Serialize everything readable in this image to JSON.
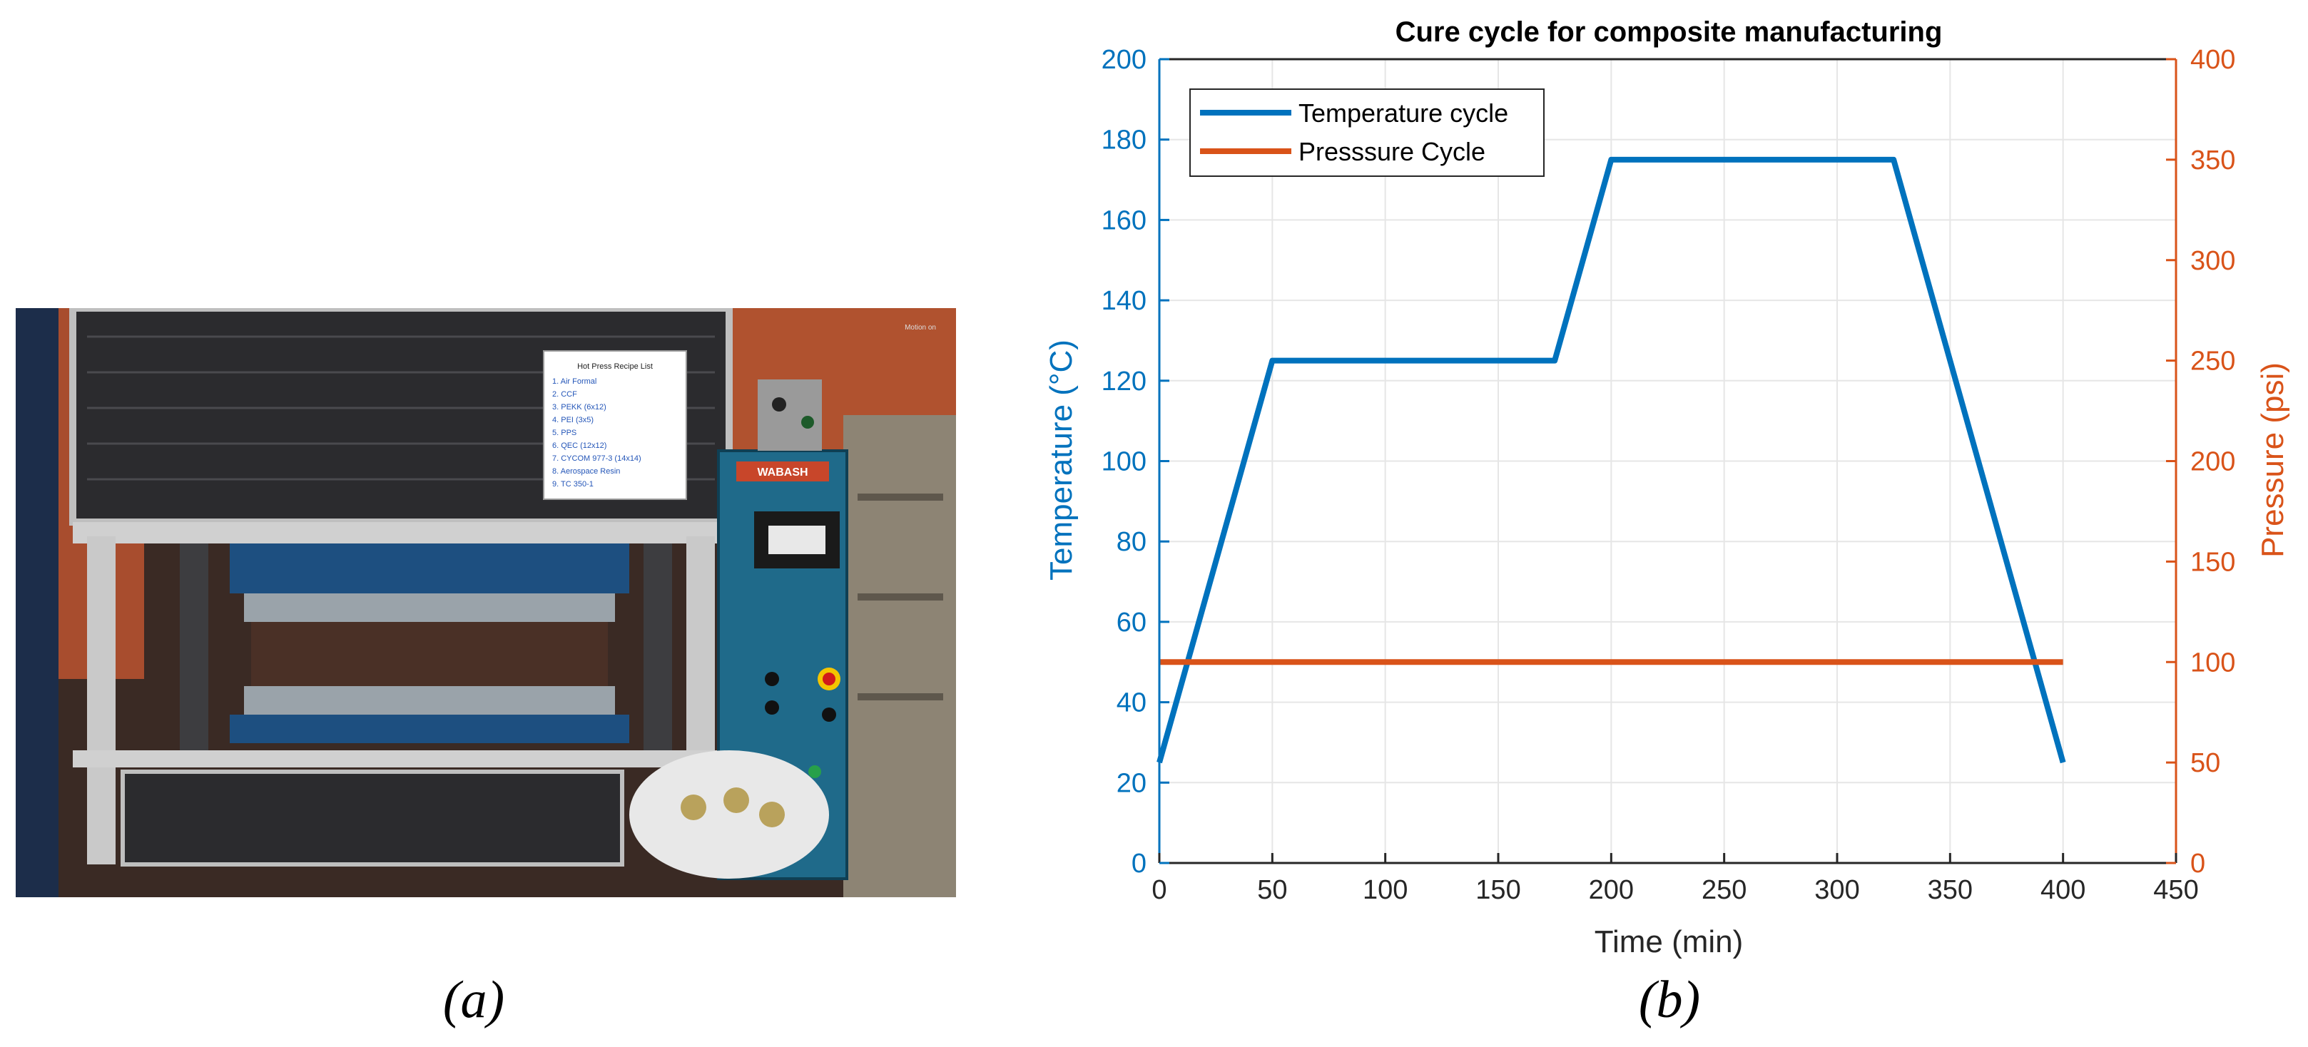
{
  "panels": {
    "a_label": "(a)",
    "b_label": "(b)"
  },
  "photo": {
    "recipe_card": {
      "title": "Hot Press Recipe List",
      "lines": [
        "1. Air Formal",
        "2. CCF",
        "3. PEKK (6x12)",
        "4. PEI (3x5)",
        "5. PPS",
        "6. QEC (12x12)",
        "7. CYCOM 977-3 (14x14)",
        "8. Aerospace Resin",
        "9. TC 350-1"
      ]
    },
    "press_brand": "WABASH",
    "overlay_text": "Motion on"
  },
  "colors": {
    "temperature": "#0072BD",
    "pressure": "#D95319",
    "grid": "#e6e6e6",
    "axis": "#262626"
  },
  "chart_data": {
    "type": "line",
    "title": "Cure cycle for composite manufacturing",
    "xlabel": "Time (min)",
    "ylabel_left": "Temperature  (°C)",
    "ylabel_right": "Pressure (psi)",
    "xlim": [
      0,
      450
    ],
    "ylim_left": [
      0,
      200
    ],
    "ylim_right": [
      0,
      400
    ],
    "xticks": [
      0,
      50,
      100,
      150,
      200,
      250,
      300,
      350,
      400,
      450
    ],
    "yticks_left": [
      0,
      20,
      40,
      60,
      80,
      100,
      120,
      140,
      160,
      180,
      200
    ],
    "yticks_right": [
      0,
      50,
      100,
      150,
      200,
      250,
      300,
      350,
      400
    ],
    "grid": true,
    "legend_position": "top-left",
    "series": [
      {
        "name": "Temperature cycle",
        "axis": "left",
        "color": "#0072BD",
        "x": [
          0,
          50,
          175,
          200,
          325,
          400
        ],
        "y": [
          25,
          125,
          125,
          175,
          175,
          25
        ]
      },
      {
        "name": "Presssure Cycle",
        "axis": "right",
        "color": "#D95319",
        "x": [
          0,
          400
        ],
        "y": [
          100,
          100
        ]
      }
    ]
  }
}
